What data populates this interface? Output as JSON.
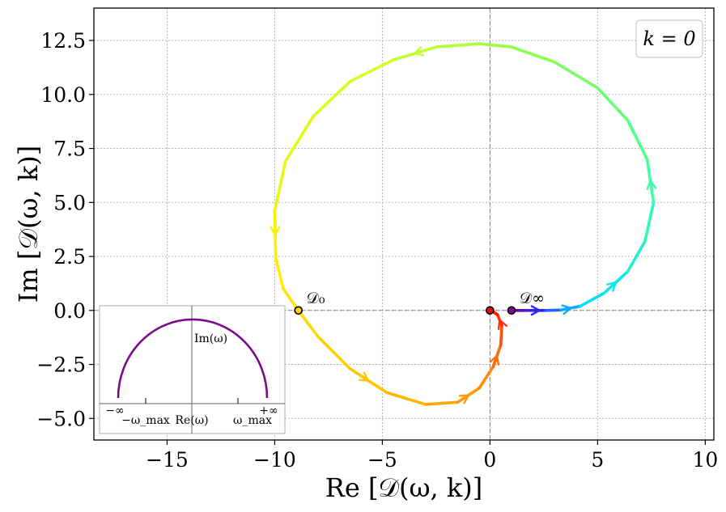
{
  "chart_data": {
    "type": "line",
    "xlim": [
      -18.4,
      10.4
    ],
    "ylim": [
      -6.0,
      14.0
    ],
    "xticks": [
      -15,
      -10,
      -5,
      0,
      5,
      10
    ],
    "yticks": [
      -5.0,
      -2.5,
      0.0,
      2.5,
      5.0,
      7.5,
      10.0,
      12.5
    ],
    "xtick_labels": [
      "−15",
      "−10",
      "−5",
      "0",
      "5",
      "10"
    ],
    "ytick_labels": [
      "−5.0",
      "−2.5",
      "0.0",
      "2.5",
      "5.0",
      "7.5",
      "10.0",
      "12.5"
    ],
    "xlabel": "Re [𝒟(ω, k)]",
    "ylabel": "Im [𝒟(ω, k)]",
    "grid": true,
    "legend": {
      "text": "k = 0",
      "placement": "top-right"
    },
    "curve": {
      "name": "",
      "points": [
        [
          1.0,
          0.0
        ],
        [
          1.5,
          0.0
        ],
        [
          2.0,
          0.0
        ],
        [
          2.6,
          0.0
        ],
        [
          3.3,
          0.02
        ],
        [
          4.2,
          0.2
        ],
        [
          5.3,
          0.8
        ],
        [
          6.4,
          1.8
        ],
        [
          7.2,
          3.2
        ],
        [
          7.6,
          5.0
        ],
        [
          7.3,
          7.0
        ],
        [
          6.4,
          8.8
        ],
        [
          5.0,
          10.3
        ],
        [
          3.0,
          11.5
        ],
        [
          1.0,
          12.2
        ],
        [
          -0.5,
          12.35
        ],
        [
          -2.5,
          12.2
        ],
        [
          -4.5,
          11.6
        ],
        [
          -6.5,
          10.6
        ],
        [
          -8.2,
          9.0
        ],
        [
          -9.5,
          6.9
        ],
        [
          -10.0,
          4.6
        ],
        [
          -9.95,
          2.4
        ],
        [
          -9.6,
          1.0
        ],
        [
          -8.9,
          0.0
        ],
        [
          -8.0,
          -1.2
        ],
        [
          -6.5,
          -2.7
        ],
        [
          -4.8,
          -3.8
        ],
        [
          -3.0,
          -4.35
        ],
        [
          -1.5,
          -4.25
        ],
        [
          -0.5,
          -3.6
        ],
        [
          0.15,
          -2.6
        ],
        [
          0.5,
          -1.6
        ],
        [
          0.55,
          -0.7
        ],
        [
          0.35,
          -0.2
        ],
        [
          0.05,
          0.0
        ]
      ],
      "arrow_indices": [
        6,
        9,
        16,
        21,
        26,
        29,
        31,
        33,
        2,
        4
      ]
    },
    "annotations": [
      {
        "text": "𝒟₀",
        "x": -8.9,
        "y": 0.0
      },
      {
        "text": "𝒟∞",
        "x": 1.0,
        "y": 0.0
      }
    ],
    "markers": [
      {
        "x": -8.9,
        "y": 0.0,
        "color": "#ffd400"
      },
      {
        "x": 0.0,
        "y": 0.0,
        "color": "#e01010"
      },
      {
        "x": 1.0,
        "y": 0.0,
        "color": "#7a1090"
      }
    ],
    "inset": {
      "labels": {
        "im": "Im(ω)",
        "re": "Re(ω)",
        "neg_inf": "−∞",
        "pos_inf": "+∞",
        "neg_omega_max": "−ω_max",
        "omega_max": "ω_max"
      },
      "contour_color": "#7a0a8a"
    },
    "colors": {
      "axis_line": "#888888",
      "grid": "#b5b5b5"
    }
  }
}
